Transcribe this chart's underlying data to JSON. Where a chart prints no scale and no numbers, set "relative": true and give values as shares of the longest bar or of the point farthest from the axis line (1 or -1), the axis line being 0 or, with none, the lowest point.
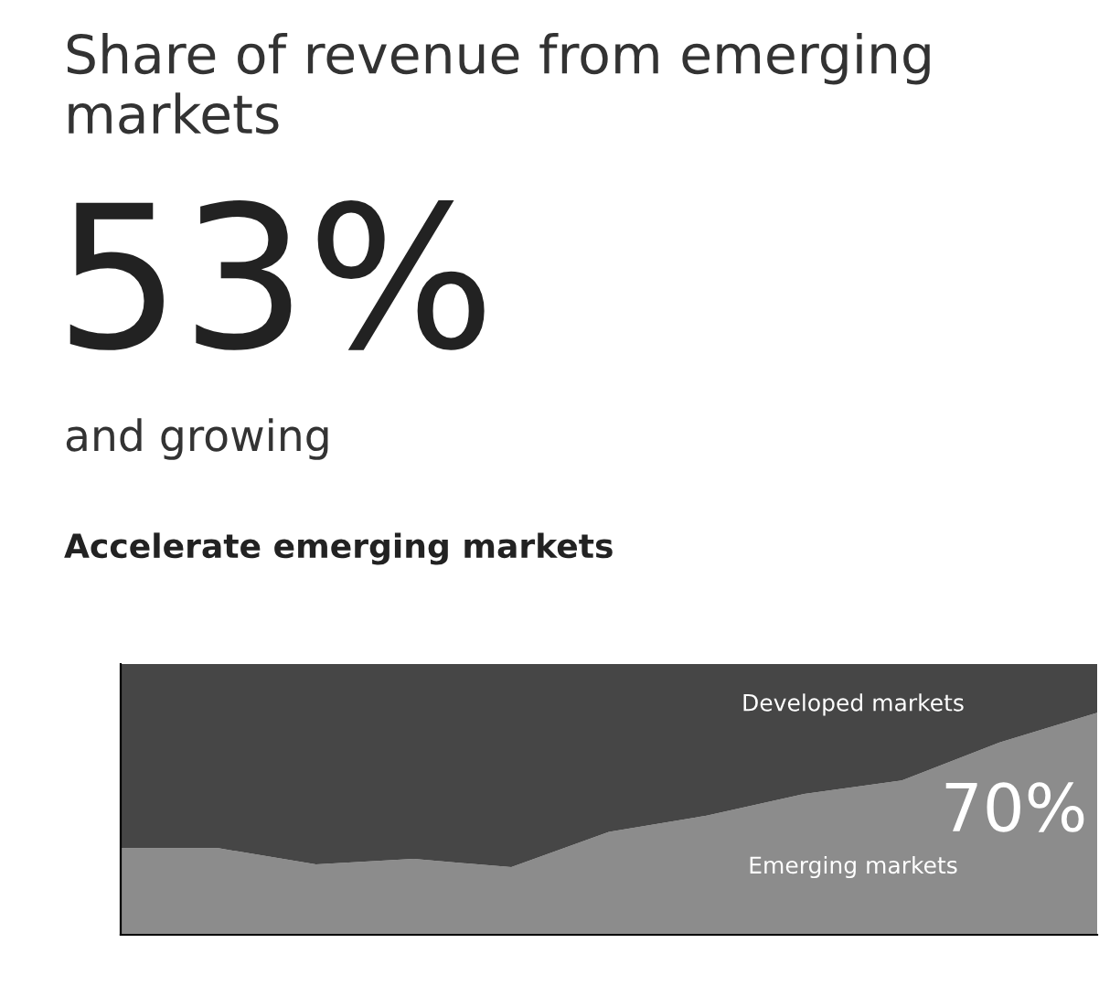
{
  "chart_data": {
    "type": "area",
    "stacked": true,
    "relative": true,
    "title": "Share of revenue from emerging markets",
    "subtitle": "Accelerate emerging markets",
    "categories": [
      null,
      null,
      null,
      null,
      null,
      null,
      null,
      null,
      null,
      null,
      null
    ],
    "series": [
      {
        "name": "Emerging markets",
        "color": "#8c8c8c",
        "values": [
          0.32,
          0.32,
          0.26,
          0.28,
          0.25,
          0.38,
          0.44,
          0.52,
          0.57,
          0.71,
          0.82
        ]
      },
      {
        "name": "Developed markets",
        "color": "#464646",
        "values": [
          0.68,
          0.68,
          0.74,
          0.72,
          0.75,
          0.62,
          0.56,
          0.48,
          0.43,
          0.29,
          0.18
        ]
      }
    ],
    "annotations": [
      "53%",
      "and growing",
      "70%"
    ],
    "legend": false,
    "grid": false
  }
}
